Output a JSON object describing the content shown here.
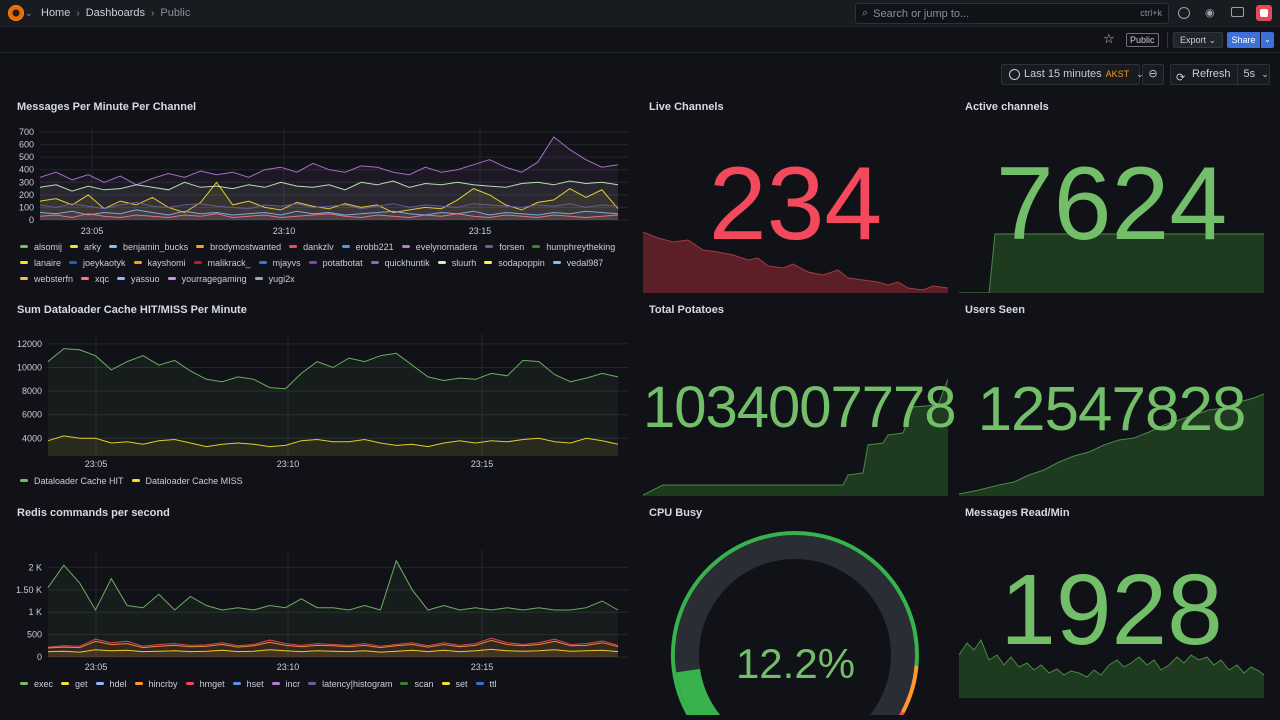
{
  "topbar": {
    "breadcrumbs": [
      "Home",
      "Dashboards",
      "Public"
    ],
    "search_placeholder": "Search or jump to...",
    "search_shortcut": "ctrl+k"
  },
  "toolbar": {
    "public_badge": "Public",
    "export_label": "Export",
    "share_label": "Share",
    "time_range": "Last 15 minutes",
    "timezone": "AKST",
    "refresh_label": "Refresh",
    "refresh_interval": "5s"
  },
  "colors": {
    "green": "#73bf69",
    "red": "#f2495c",
    "yellow": "#fade2a",
    "blue": "#5794f2",
    "orange": "#ff9830",
    "purple": "#b877d9"
  },
  "panels": {
    "messages": {
      "title": "Messages Per Minute Per Channel",
      "legend": [
        {
          "name": "alsomij",
          "color": "#73bf69"
        },
        {
          "name": "arky",
          "color": "#fade2a"
        },
        {
          "name": "benjamin_bucks",
          "color": "#8ab8ff"
        },
        {
          "name": "brodymostwanted",
          "color": "#ff9830"
        },
        {
          "name": "dankzlv",
          "color": "#f2495c"
        },
        {
          "name": "erobb221",
          "color": "#5794f2"
        },
        {
          "name": "evelynomadera",
          "color": "#b877d9"
        },
        {
          "name": "forsen",
          "color": "#705da0"
        },
        {
          "name": "humphreytheking",
          "color": "#37872d"
        },
        {
          "name": "lanaire",
          "color": "#fade2a"
        },
        {
          "name": "joeykaotyk",
          "color": "#1f60c4"
        },
        {
          "name": "kayshomi",
          "color": "#ff9830"
        },
        {
          "name": "malikrack_",
          "color": "#c4162a"
        },
        {
          "name": "mjayvs",
          "color": "#3274d9"
        },
        {
          "name": "potatbotat",
          "color": "#8f3bb8"
        },
        {
          "name": "quickhuntik",
          "color": "#806eb7"
        },
        {
          "name": "sluurh",
          "color": "#c8f2c2"
        },
        {
          "name": "sodapoppin",
          "color": "#ffee52"
        },
        {
          "name": "vedal987",
          "color": "#8ab8ff"
        },
        {
          "name": "websterfn",
          "color": "#ffb357"
        },
        {
          "name": "xqc",
          "color": "#ff7383"
        },
        {
          "name": "yassuo",
          "color": "#8ab8ff"
        },
        {
          "name": "yourragegaming",
          "color": "#ca95e5"
        },
        {
          "name": "yugi2x",
          "color": "#a1a1c8"
        }
      ]
    },
    "dataloader": {
      "title": "Sum Dataloader Cache HIT/MISS Per Minute",
      "legend": [
        {
          "name": "Dataloader Cache HIT",
          "color": "#73bf69"
        },
        {
          "name": "Dataloader Cache MISS",
          "color": "#fade2a"
        }
      ]
    },
    "redis": {
      "title": "Redis commands per second",
      "legend": [
        {
          "name": "exec",
          "color": "#73bf69"
        },
        {
          "name": "get",
          "color": "#fade2a"
        },
        {
          "name": "hdel",
          "color": "#8ab8ff"
        },
        {
          "name": "hincrby",
          "color": "#ff9830"
        },
        {
          "name": "hmget",
          "color": "#f2495c"
        },
        {
          "name": "hset",
          "color": "#5794f2"
        },
        {
          "name": "incr",
          "color": "#b877d9"
        },
        {
          "name": "latency|histogram",
          "color": "#705da0"
        },
        {
          "name": "scan",
          "color": "#37872d"
        },
        {
          "name": "set",
          "color": "#fade2a"
        },
        {
          "name": "ttl",
          "color": "#3274d9"
        }
      ]
    },
    "live_channels": {
      "title": "Live Channels",
      "value": "234",
      "color": "#f2495c"
    },
    "active_channels": {
      "title": "Active channels",
      "value": "7624",
      "color": "#73bf69"
    },
    "total_potatoes": {
      "title": "Total Potatoes",
      "value": "1034007778",
      "color": "#73bf69"
    },
    "users_seen": {
      "title": "Users Seen",
      "value": "12547828",
      "color": "#73bf69"
    },
    "cpu_busy": {
      "title": "CPU Busy",
      "value": "12.2%",
      "percent": 12.2,
      "color": "#73bf69"
    },
    "messages_read": {
      "title": "Messages Read/Min",
      "value": "1928",
      "color": "#73bf69"
    }
  },
  "chart_data": [
    {
      "type": "line",
      "title": "Messages Per Minute Per Channel",
      "ylim": [
        0,
        700
      ],
      "yticks": [
        "700",
        "600",
        "500",
        "400",
        "300",
        "200",
        "100",
        "0"
      ],
      "xticks": [
        "23:05",
        "23:10",
        "23:15"
      ],
      "series": [
        {
          "name": "yourragegaming",
          "values": [
            340,
            380,
            320,
            360,
            300,
            350,
            280,
            330,
            370,
            340,
            390,
            360,
            380,
            340,
            400,
            420,
            380,
            450,
            400,
            380,
            430,
            420,
            380,
            360,
            420,
            380,
            400,
            440,
            480,
            420,
            380,
            460,
            660,
            560,
            480,
            420,
            440
          ]
        },
        {
          "name": "arky",
          "values": [
            150,
            170,
            120,
            200,
            90,
            150,
            120,
            180,
            100,
            60,
            140,
            300,
            120,
            150,
            100,
            80,
            140,
            110,
            90,
            130,
            100,
            120,
            60,
            80,
            100,
            90,
            160,
            250,
            200,
            120,
            80,
            140,
            160,
            250,
            180,
            240,
            90
          ]
        },
        {
          "name": "sluurh",
          "values": [
            260,
            280,
            230,
            270,
            240,
            250,
            280,
            260,
            240,
            300,
            260,
            270,
            250,
            280,
            260,
            300,
            270,
            260,
            280,
            240,
            300,
            280,
            310,
            260,
            290,
            280,
            300,
            280,
            270,
            260,
            290,
            300,
            280,
            310,
            290,
            300,
            280
          ]
        },
        {
          "name": "benjamin_bucks",
          "values": [
            60,
            50,
            70,
            40,
            60,
            50,
            80,
            60,
            40,
            70,
            50,
            60,
            40,
            50,
            60,
            40,
            70,
            50,
            60,
            40,
            50,
            60,
            70,
            50,
            40,
            60,
            50,
            70,
            40,
            60,
            50,
            40,
            60,
            50,
            70,
            60,
            50
          ]
        },
        {
          "name": "forsen",
          "values": [
            120,
            100,
            130,
            110,
            90,
            120,
            140,
            110,
            100,
            120,
            130,
            110,
            100,
            90,
            120,
            110,
            130,
            100,
            110,
            120,
            90,
            110,
            130,
            100,
            120,
            110,
            100,
            130,
            120,
            110,
            100,
            120,
            110,
            130,
            100,
            120,
            110
          ]
        },
        {
          "name": "xqc",
          "values": [
            30,
            40,
            20,
            50,
            30,
            20,
            40,
            30,
            20,
            40,
            30,
            50,
            20,
            30,
            40,
            20,
            30,
            40,
            50,
            30,
            20,
            40,
            30,
            20,
            40,
            30,
            50,
            30,
            20,
            40,
            30,
            20,
            40,
            30,
            20,
            30,
            40
          ]
        }
      ]
    },
    {
      "type": "line",
      "title": "Sum Dataloader Cache HIT/MISS Per Minute",
      "ylim": [
        2500,
        12500
      ],
      "yticks": [
        "12000",
        "10000",
        "8000",
        "6000",
        "4000"
      ],
      "xticks": [
        "23:05",
        "23:10",
        "23:15"
      ],
      "series": [
        {
          "name": "Dataloader Cache HIT",
          "values": [
            10500,
            11600,
            11500,
            11000,
            9800,
            10500,
            11000,
            10200,
            10600,
            9700,
            9000,
            8800,
            9200,
            9000,
            8300,
            8200,
            9500,
            10500,
            10000,
            10800,
            10500,
            11000,
            11200,
            10200,
            9200,
            8900,
            9100,
            9000,
            9500,
            9300,
            10600,
            10500,
            9400,
            8800,
            9100,
            9500,
            9200
          ]
        },
        {
          "name": "Dataloader Cache MISS",
          "values": [
            3800,
            4200,
            4000,
            4000,
            3600,
            3700,
            3500,
            3800,
            3900,
            3600,
            3300,
            3500,
            3600,
            3500,
            3300,
            3400,
            3800,
            3900,
            3700,
            3700,
            3900,
            3600,
            3400,
            3500,
            3300,
            3600,
            3800,
            3600,
            3800,
            3700,
            3900,
            4000,
            3700,
            3600,
            4000,
            3800,
            3500
          ]
        }
      ]
    },
    {
      "type": "line",
      "title": "Redis commands per second",
      "ylim": [
        0,
        2300
      ],
      "yticks": [
        "2 K",
        "1.50 K",
        "1 K",
        "500",
        "0"
      ],
      "xticks": [
        "23:05",
        "23:10",
        "23:15"
      ],
      "series": [
        {
          "name": "exec",
          "values": [
            1550,
            2050,
            1650,
            1050,
            1750,
            1150,
            1100,
            1400,
            1050,
            1350,
            1150,
            1050,
            1100,
            1050,
            1150,
            1100,
            1300,
            1100,
            1100,
            1050,
            1150,
            1050,
            2150,
            1500,
            1050,
            1150,
            1050,
            1100,
            1050,
            1100,
            1050,
            1100,
            1050,
            1050,
            1100,
            1250,
            1050
          ]
        },
        {
          "name": "hmget",
          "values": [
            220,
            250,
            240,
            400,
            320,
            350,
            240,
            280,
            300,
            260,
            270,
            320,
            250,
            280,
            380,
            300,
            260,
            300,
            280,
            260,
            300,
            240,
            280,
            320,
            250,
            320,
            260,
            300,
            420,
            320,
            280,
            320,
            400,
            280,
            300,
            360,
            260
          ]
        },
        {
          "name": "hincrby",
          "values": [
            200,
            220,
            210,
            350,
            280,
            300,
            210,
            240,
            260,
            230,
            240,
            280,
            220,
            250,
            330,
            260,
            230,
            260,
            250,
            230,
            260,
            210,
            250,
            280,
            220,
            280,
            230,
            260,
            370,
            280,
            250,
            280,
            350,
            250,
            260,
            320,
            230
          ]
        },
        {
          "name": "get",
          "values": [
            120,
            130,
            110,
            160,
            140,
            150,
            120,
            130,
            140,
            120,
            130,
            150,
            120,
            130,
            160,
            140,
            120,
            140,
            130,
            120,
            140,
            110,
            130,
            150,
            120,
            150,
            120,
            140,
            170,
            140,
            130,
            140,
            160,
            130,
            140,
            150,
            120
          ]
        }
      ]
    }
  ]
}
